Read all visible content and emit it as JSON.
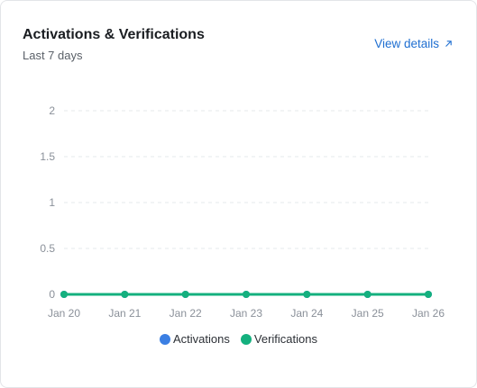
{
  "card": {
    "title": "Activations & Verifications",
    "subtitle": "Last 7 days",
    "view_details_label": "View details",
    "view_details_icon": "arrow-up-right-icon"
  },
  "colors": {
    "activations": "#3b7fe3",
    "verifications": "#14b07e",
    "grid": "#e6e8eb",
    "link": "#1f6fd1"
  },
  "chart_data": {
    "type": "line",
    "x": [
      "Jan 20",
      "Jan 21",
      "Jan 22",
      "Jan 23",
      "Jan 24",
      "Jan 25",
      "Jan 26"
    ],
    "yticks": [
      "0",
      "0.5",
      "1",
      "1.5",
      "2"
    ],
    "ylim": [
      0,
      2
    ],
    "grid": true,
    "legend_position": "bottom-center",
    "series": [
      {
        "name": "Activations",
        "values": [
          0,
          0,
          0,
          0,
          0,
          0,
          0
        ]
      },
      {
        "name": "Verifications",
        "values": [
          0,
          0,
          0,
          0,
          0,
          0,
          0
        ]
      }
    ]
  }
}
